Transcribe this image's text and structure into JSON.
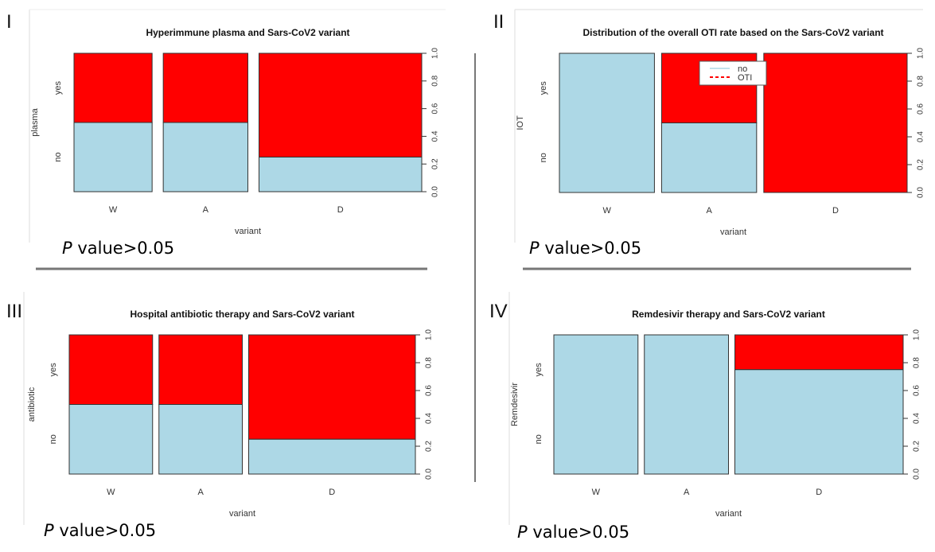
{
  "colors": {
    "no": "#add8e6",
    "yes": "#ff0000",
    "border": "#333333"
  },
  "chart_data": [
    {
      "type": "bar",
      "subtype": "spineplot",
      "panel": "I",
      "title": "Hyperimmune plasma and Sars-CoV2 variant",
      "xlabel": "variant",
      "ylabel": "plasma",
      "levels": [
        "no",
        "yes"
      ],
      "categories": [
        "W",
        "A",
        "D"
      ],
      "widths": [
        0.24,
        0.26,
        0.5
      ],
      "no_fraction": [
        0.5,
        0.5,
        0.25
      ],
      "yticks": [
        "0.0",
        "0.2",
        "0.4",
        "0.6",
        "0.8",
        "1.0"
      ],
      "ylim": [
        0,
        1
      ],
      "pvalue": {
        "p": "P",
        "rest": " value>0.05"
      }
    },
    {
      "type": "bar",
      "subtype": "spineplot",
      "panel": "II",
      "title": "Distribution of the overall OTI rate based on the Sars-CoV2 variant",
      "xlabel": "variant",
      "ylabel": "IOT",
      "levels": [
        "no",
        "yes"
      ],
      "categories": [
        "W",
        "A",
        "D"
      ],
      "widths": [
        0.285,
        0.285,
        0.43
      ],
      "no_fraction": [
        1.0,
        0.5,
        0.0
      ],
      "yticks": [
        "0.0",
        "0.2",
        "0.4",
        "0.6",
        "0.8",
        "1.0"
      ],
      "ylim": [
        0,
        1
      ],
      "legend": [
        "no",
        "OTI"
      ],
      "pvalue": {
        "p": "P",
        "rest": " value>0.05"
      }
    },
    {
      "type": "bar",
      "subtype": "spineplot",
      "panel": "III",
      "title": "Hospital antibiotic therapy and Sars-CoV2 variant",
      "xlabel": "variant",
      "ylabel": "antibiotic",
      "levels": [
        "no",
        "yes"
      ],
      "categories": [
        "W",
        "A",
        "D"
      ],
      "widths": [
        0.25,
        0.25,
        0.5
      ],
      "no_fraction": [
        0.5,
        0.5,
        0.25
      ],
      "yticks": [
        "0.0",
        "0.2",
        "0.4",
        "0.6",
        "0.8",
        "1.0"
      ],
      "ylim": [
        0,
        1
      ],
      "pvalue": {
        "p": "P",
        "rest": " value>0.05"
      }
    },
    {
      "type": "bar",
      "subtype": "spineplot",
      "panel": "IV",
      "title": "Remdesivir therapy and Sars-CoV2 variant",
      "xlabel": "variant",
      "ylabel": "Remdesivir",
      "levels": [
        "no",
        "yes"
      ],
      "categories": [
        "W",
        "A",
        "D"
      ],
      "widths": [
        0.25,
        0.25,
        0.5
      ],
      "no_fraction": [
        1.0,
        1.0,
        0.75
      ],
      "yticks": [
        "0.0",
        "0.2",
        "0.4",
        "0.6",
        "0.8",
        "1.0"
      ],
      "ylim": [
        0,
        1
      ],
      "pvalue": {
        "p": "P",
        "rest": " value>0.05"
      }
    }
  ]
}
